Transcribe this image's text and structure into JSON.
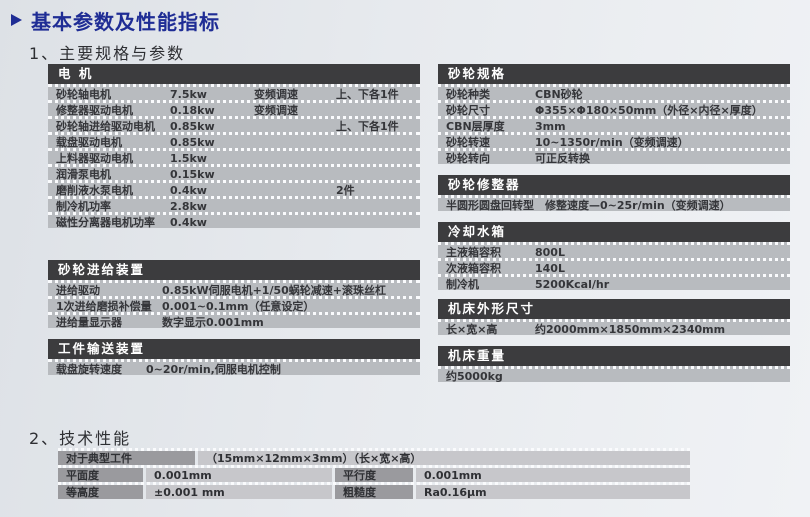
{
  "header": {
    "bullet_icon": "right-triangle",
    "title": "基本参数及性能指标"
  },
  "sections": {
    "main_specs_heading": "1、主要规格与参数",
    "tech_perf_heading": "2、技术性能"
  },
  "left_tables": [
    {
      "key": "motor",
      "title": "电 机",
      "rows": [
        [
          "砂轮轴电机",
          "7.5kw",
          "变频调速",
          "上、下各1件"
        ],
        [
          "修整器驱动电机",
          "0.18kw",
          "变频调速",
          ""
        ],
        [
          "砂轮轴进给驱动电机",
          "0.85kw",
          "",
          "上、下各1件"
        ],
        [
          "载盘驱动电机",
          "0.85kw",
          "",
          ""
        ],
        [
          "上料器驱动电机",
          "1.5kw",
          "",
          ""
        ],
        [
          "润滑泵电机",
          "0.15kw",
          "",
          ""
        ],
        [
          "磨削液水泵电机",
          "0.4kw",
          "",
          "2件"
        ],
        [
          "制冷机功率",
          "2.8kw",
          "",
          ""
        ],
        [
          "磁性分离器电机功率",
          "0.4kw",
          "",
          ""
        ]
      ]
    },
    {
      "key": "feed",
      "title": "砂轮进给装置",
      "rows": [
        [
          "进给驱动",
          "0.85kW伺服电机+1/50蜗轮减速+滚珠丝杠"
        ],
        [
          "1次进给磨损补偿量",
          "0.001~0.1mm（任意设定）"
        ],
        [
          "进给量显示器",
          "数字显示0.001mm"
        ]
      ]
    },
    {
      "key": "convey",
      "title": "工件输送装置",
      "rows": [
        [
          "载盘旋转速度",
          "0~20r/min,伺服电机控制"
        ]
      ]
    }
  ],
  "right_tables": [
    {
      "key": "wheel",
      "title": "砂轮规格",
      "rows": [
        [
          "砂轮种类",
          "CBN砂轮"
        ],
        [
          "砂轮尺寸",
          "Φ355×Φ180×50mm（外径×内径×厚度）"
        ],
        [
          "CBN层厚度",
          "3mm"
        ],
        [
          "砂轮转速",
          "10~1350r/min（变频调速）"
        ],
        [
          "砂轮转向",
          "可正反转换"
        ]
      ]
    },
    {
      "key": "dresser",
      "title": "砂轮修整器",
      "rows": [
        [
          "半圆形圆盘回转型",
          "修整速度—0~25r/min（变频调速）"
        ]
      ]
    },
    {
      "key": "coolant",
      "title": "冷却水箱",
      "rows": [
        [
          "主液箱容积",
          "800L"
        ],
        [
          "次液箱容积",
          "140L"
        ],
        [
          "制冷机",
          "5200Kcal/hr"
        ]
      ]
    },
    {
      "key": "dims",
      "title": "机床外形尺寸",
      "rows": [
        [
          "长×宽×高",
          "约2000mm×1850mm×2340mm"
        ]
      ]
    },
    {
      "key": "weight",
      "title": "机床重量",
      "rows": [
        [
          "约5000kg"
        ]
      ]
    }
  ],
  "perf_table": {
    "rows": [
      [
        {
          "text": "对于典型工件",
          "kind": "label"
        },
        {
          "text": "（15mm×12mm×3mm）（长×宽×高）",
          "kind": "value"
        }
      ],
      [
        {
          "text": "平面度",
          "kind": "label"
        },
        {
          "text": "0.001mm",
          "kind": "value"
        },
        {
          "text": "平行度",
          "kind": "label"
        },
        {
          "text": "0.001mm",
          "kind": "value"
        }
      ],
      [
        {
          "text": "等高度",
          "kind": "label"
        },
        {
          "text": "±0.001 mm",
          "kind": "value"
        },
        {
          "text": "粗糙度",
          "kind": "label"
        },
        {
          "text": "Ra0.16μm",
          "kind": "value"
        }
      ]
    ]
  },
  "colors": {
    "title_navy": "#1f2d95",
    "section_bar": "#3c3c3e",
    "row_bg": "#b8bbbf",
    "perf_label_bg": "#9a9a9e",
    "perf_value_bg": "#c7c7cb"
  }
}
